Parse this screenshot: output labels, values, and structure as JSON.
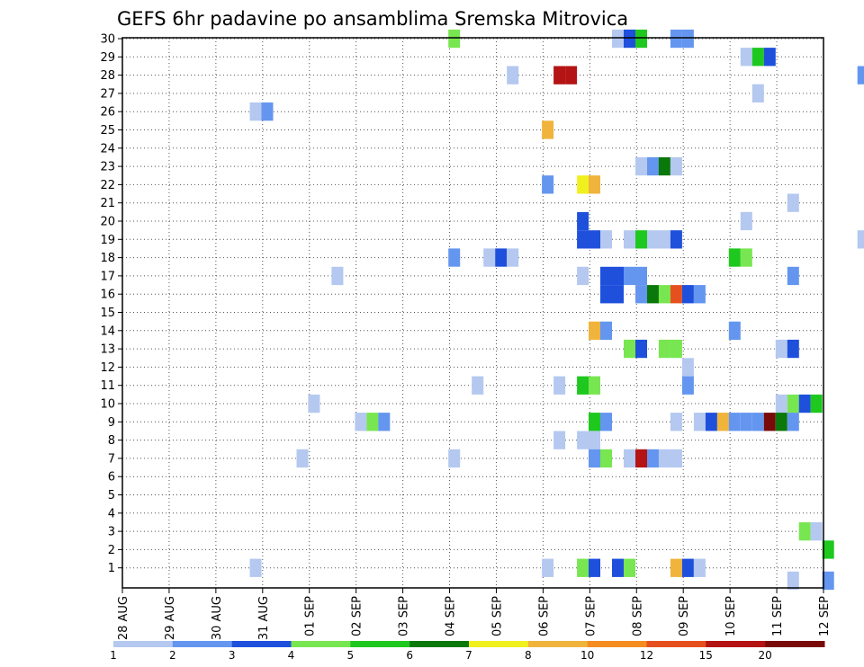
{
  "chart_data": {
    "type": "heatmap",
    "title": "GEFS 6hr padavine po ansamblima Sremska Mitrovica",
    "y_ticks": [
      1,
      2,
      3,
      4,
      5,
      6,
      7,
      8,
      9,
      10,
      11,
      12,
      13,
      14,
      15,
      16,
      17,
      18,
      19,
      20,
      21,
      22,
      23,
      24,
      25,
      26,
      27,
      28,
      29,
      30
    ],
    "x_ticks": [
      "28 AUG",
      "29 AUG",
      "30 AUG",
      "31 AUG",
      "01 SEP",
      "02 SEP",
      "03 SEP",
      "04 SEP",
      "05 SEP",
      "06 SEP",
      "07 SEP",
      "08 SEP",
      "09 SEP",
      "10 SEP",
      "11 SEP",
      "12 SEP"
    ],
    "grid": true,
    "legend": {
      "placement": "bottom",
      "labels": [
        "1",
        "2",
        "3",
        "4",
        "5",
        "6",
        "7",
        "8",
        "10",
        "12",
        "15",
        "20"
      ],
      "colors": [
        "#b4c8f0",
        "#6496f0",
        "#1e50dc",
        "#78e650",
        "#1ec81e",
        "#0a780a",
        "#f0f01e",
        "#f0b43c",
        "#f58c1e",
        "#e6501e",
        "#b41414",
        "#780a0a"
      ]
    },
    "cells": [
      {
        "m": 30,
        "d": 7.1,
        "c": 3
      },
      {
        "m": 30,
        "d": 10.6,
        "c": 0
      },
      {
        "m": 30,
        "d": 10.85,
        "c": 2
      },
      {
        "m": 30,
        "d": 11.1,
        "c": 4
      },
      {
        "m": 30,
        "d": 11.85,
        "c": 1
      },
      {
        "m": 30,
        "d": 12.1,
        "c": 1
      },
      {
        "m": 29,
        "d": 13.35,
        "c": 0
      },
      {
        "m": 29,
        "d": 13.6,
        "c": 4
      },
      {
        "m": 29,
        "d": 13.85,
        "c": 2
      },
      {
        "m": 28,
        "d": 8.35,
        "c": 0
      },
      {
        "m": 28,
        "d": 9.35,
        "c": 10
      },
      {
        "m": 28,
        "d": 9.6,
        "c": 10
      },
      {
        "m": 28,
        "d": 15.85,
        "c": 1
      },
      {
        "m": 27,
        "d": 13.6,
        "c": 0
      },
      {
        "m": 26,
        "d": 2.85,
        "c": 0
      },
      {
        "m": 26,
        "d": 3.1,
        "c": 1
      },
      {
        "m": 25,
        "d": 9.1,
        "c": 7
      },
      {
        "m": 23,
        "d": 11.1,
        "c": 0
      },
      {
        "m": 23,
        "d": 11.35,
        "c": 1
      },
      {
        "m": 23,
        "d": 11.6,
        "c": 5
      },
      {
        "m": 23,
        "d": 11.85,
        "c": 0
      },
      {
        "m": 22,
        "d": 9.1,
        "c": 1
      },
      {
        "m": 22,
        "d": 9.85,
        "c": 6
      },
      {
        "m": 22,
        "d": 10.1,
        "c": 7
      },
      {
        "m": 21,
        "d": 14.35,
        "c": 0
      },
      {
        "m": 20,
        "d": 13.35,
        "c": 0
      },
      {
        "m": 19,
        "d": 9.85,
        "c": 2
      },
      {
        "m": 19,
        "d": 10.1,
        "c": 2
      },
      {
        "m": 19,
        "d": 10.35,
        "c": 0
      },
      {
        "m": 19,
        "d": 10.85,
        "c": 0
      },
      {
        "m": 19,
        "d": 11.1,
        "c": 4
      },
      {
        "m": 19,
        "d": 11.35,
        "c": 0
      },
      {
        "m": 19,
        "d": 11.6,
        "c": 0
      },
      {
        "m": 19,
        "d": 11.85,
        "c": 2
      },
      {
        "m": 19,
        "d": 15.85,
        "c": 0
      },
      {
        "m": 18,
        "d": 7.1,
        "c": 1
      },
      {
        "m": 18,
        "d": 7.85,
        "c": 0
      },
      {
        "m": 18,
        "d": 8.1,
        "c": 2
      },
      {
        "m": 18,
        "d": 8.35,
        "c": 0
      },
      {
        "m": 18,
        "d": 13.1,
        "c": 4
      },
      {
        "m": 18,
        "d": 13.35,
        "c": 3
      },
      {
        "m": 17,
        "d": 4.6,
        "c": 0
      },
      {
        "m": 17,
        "d": 9.85,
        "c": 0
      },
      {
        "m": 17,
        "d": 10.85,
        "c": 1
      },
      {
        "m": 17,
        "d": 11.1,
        "c": 1
      },
      {
        "m": 17,
        "d": 14.35,
        "c": 1
      },
      {
        "m": 16,
        "d": 10.35,
        "c": 2
      },
      {
        "m": 16,
        "d": 10.6,
        "c": 2
      },
      {
        "m": 16,
        "d": 11.1,
        "c": 1
      },
      {
        "m": 16,
        "d": 11.35,
        "c": 5
      },
      {
        "m": 16,
        "d": 11.6,
        "c": 3
      },
      {
        "m": 16,
        "d": 11.85,
        "c": 9
      },
      {
        "m": 16,
        "d": 12.1,
        "c": 2
      },
      {
        "m": 16,
        "d": 12.35,
        "c": 1
      },
      {
        "m": 14,
        "d": 10.1,
        "c": 7
      },
      {
        "m": 14,
        "d": 10.35,
        "c": 1
      },
      {
        "m": 14,
        "d": 13.1,
        "c": 1
      },
      {
        "m": 13,
        "d": 10.85,
        "c": 3
      },
      {
        "m": 13,
        "d": 11.1,
        "c": 2
      },
      {
        "m": 13,
        "d": 11.6,
        "c": 3
      },
      {
        "m": 13,
        "d": 11.85,
        "c": 3
      },
      {
        "m": 13,
        "d": 14.1,
        "c": 0
      },
      {
        "m": 13,
        "d": 14.35,
        "c": 2
      },
      {
        "m": 12,
        "d": 12.1,
        "c": 0
      },
      {
        "m": 11,
        "d": 7.6,
        "c": 0
      },
      {
        "m": 11,
        "d": 9.35,
        "c": 0
      },
      {
        "m": 11,
        "d": 9.85,
        "c": 4
      },
      {
        "m": 11,
        "d": 10.1,
        "c": 3
      },
      {
        "m": 11,
        "d": 12.1,
        "c": 1
      },
      {
        "m": 10,
        "d": 4.1,
        "c": 0
      },
      {
        "m": 10,
        "d": 14.1,
        "c": 0
      },
      {
        "m": 10,
        "d": 14.35,
        "c": 3
      },
      {
        "m": 10,
        "d": 14.6,
        "c": 2
      },
      {
        "m": 10,
        "d": 14.85,
        "c": 4
      },
      {
        "m": 9,
        "d": 5.1,
        "c": 0
      },
      {
        "m": 9,
        "d": 5.35,
        "c": 3
      },
      {
        "m": 9,
        "d": 5.6,
        "c": 1
      },
      {
        "m": 9,
        "d": 10.1,
        "c": 4
      },
      {
        "m": 9,
        "d": 10.35,
        "c": 1
      },
      {
        "m": 9,
        "d": 11.85,
        "c": 0
      },
      {
        "m": 9,
        "d": 12.35,
        "c": 0
      },
      {
        "m": 9,
        "d": 12.6,
        "c": 2
      },
      {
        "m": 9,
        "d": 12.85,
        "c": 7
      },
      {
        "m": 9,
        "d": 13.1,
        "c": 1
      },
      {
        "m": 9,
        "d": 13.35,
        "c": 1
      },
      {
        "m": 9,
        "d": 13.6,
        "c": 1
      },
      {
        "m": 9,
        "d": 13.85,
        "c": 11
      },
      {
        "m": 9,
        "d": 14.1,
        "c": 5
      },
      {
        "m": 9,
        "d": 14.35,
        "c": 1
      },
      {
        "m": 8,
        "d": 9.35,
        "c": 0
      },
      {
        "m": 8,
        "d": 9.85,
        "c": 0
      },
      {
        "m": 8,
        "d": 10.1,
        "c": 0
      },
      {
        "m": 7,
        "d": 3.85,
        "c": 0
      },
      {
        "m": 7,
        "d": 7.1,
        "c": 0
      },
      {
        "m": 7,
        "d": 10.1,
        "c": 1
      },
      {
        "m": 7,
        "d": 10.35,
        "c": 3
      },
      {
        "m": 7,
        "d": 10.85,
        "c": 0
      },
      {
        "m": 7,
        "d": 11.1,
        "c": 10
      },
      {
        "m": 7,
        "d": 11.35,
        "c": 1
      },
      {
        "m": 7,
        "d": 11.6,
        "c": 0
      },
      {
        "m": 7,
        "d": 11.85,
        "c": 0
      },
      {
        "m": 3,
        "d": 14.6,
        "c": 3
      },
      {
        "m": 3,
        "d": 14.85,
        "c": 0
      },
      {
        "m": 2,
        "d": 15.1,
        "c": 4
      },
      {
        "m": 1,
        "d": 2.85,
        "c": 0
      },
      {
        "m": 1,
        "d": 9.1,
        "c": 0
      },
      {
        "m": 1,
        "d": 9.85,
        "c": 3
      },
      {
        "m": 1,
        "d": 10.1,
        "c": 2
      },
      {
        "m": 1,
        "d": 10.6,
        "c": 2
      },
      {
        "m": 1,
        "d": 10.85,
        "c": 3
      },
      {
        "m": 1,
        "d": 11.85,
        "c": 7
      },
      {
        "m": 1,
        "d": 12.1,
        "c": 2
      },
      {
        "m": 1,
        "d": 12.35,
        "c": 0
      },
      {
        "m": 0.3,
        "d": 14.35,
        "c": 0
      },
      {
        "m": 0.3,
        "d": 15.1,
        "c": 1
      }
    ],
    "double_cells": [
      {
        "m": 19,
        "d": 9.85,
        "c": 2
      },
      {
        "m": 16,
        "d": 10.35,
        "c": 2
      },
      {
        "m": 16,
        "d": 10.6,
        "c": 2
      }
    ]
  }
}
